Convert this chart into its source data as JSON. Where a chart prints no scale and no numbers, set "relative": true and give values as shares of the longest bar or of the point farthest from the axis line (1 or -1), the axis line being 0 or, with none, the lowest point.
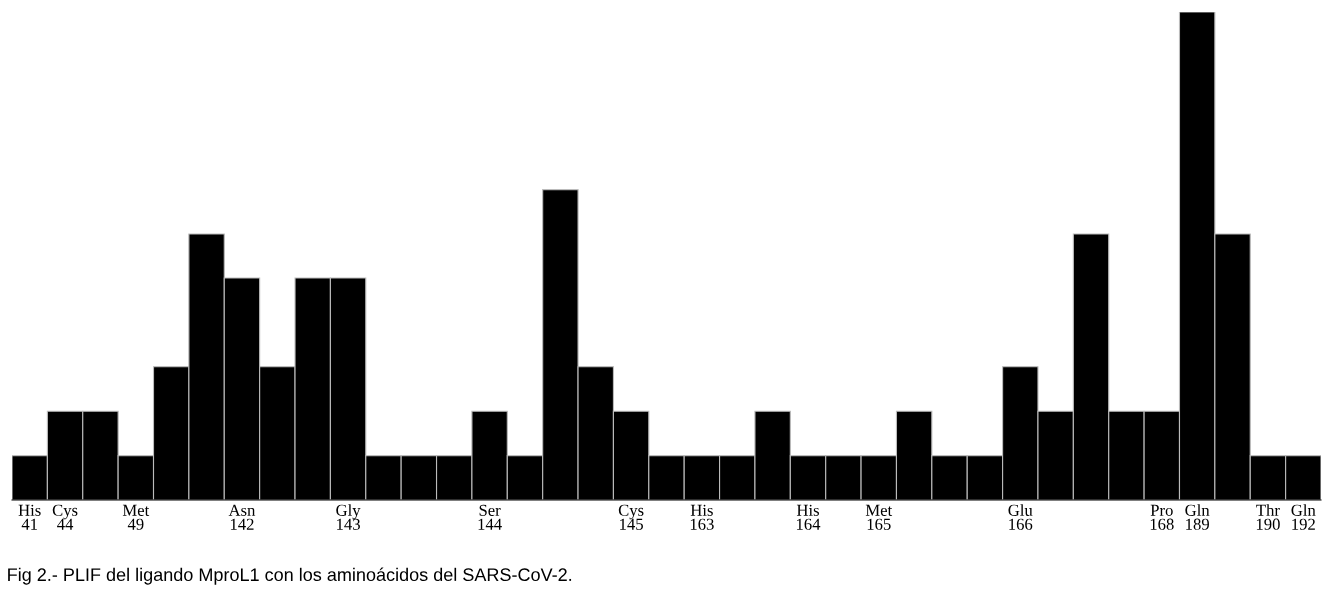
{
  "chart_data": {
    "type": "bar",
    "relative": true,
    "color": "#000000",
    "categories": [
      "His\n41",
      "Cys\n44",
      null,
      "Met\n49",
      null,
      null,
      "Asn\n142",
      null,
      null,
      "Gly\n143",
      null,
      null,
      null,
      "Ser\n144",
      null,
      null,
      null,
      "Cys\n145",
      null,
      "His\n163",
      null,
      null,
      "His\n164",
      null,
      "Met\n165",
      null,
      null,
      null,
      "Glu\n166",
      null,
      null,
      null,
      "Pro\n168",
      "Gln\n189",
      null,
      "Thr\n190",
      "Gln\n192"
    ],
    "values": [
      0.091,
      0.182,
      0.182,
      0.091,
      0.273,
      0.545,
      0.455,
      0.273,
      0.455,
      0.455,
      0.091,
      0.091,
      0.091,
      0.182,
      0.091,
      0.636,
      0.273,
      0.182,
      0.091,
      0.091,
      0.091,
      0.182,
      0.091,
      0.091,
      0.091,
      0.182,
      0.091,
      0.091,
      0.273,
      0.182,
      0.545,
      0.182,
      0.182,
      1,
      0.545,
      0.091,
      0.091
    ],
    "grid": false,
    "legend": false,
    "annotations": [
      "Fig 2.- PLIF del ligando MproL1 con los aminoácidos del SARS-CoV-2."
    ]
  }
}
